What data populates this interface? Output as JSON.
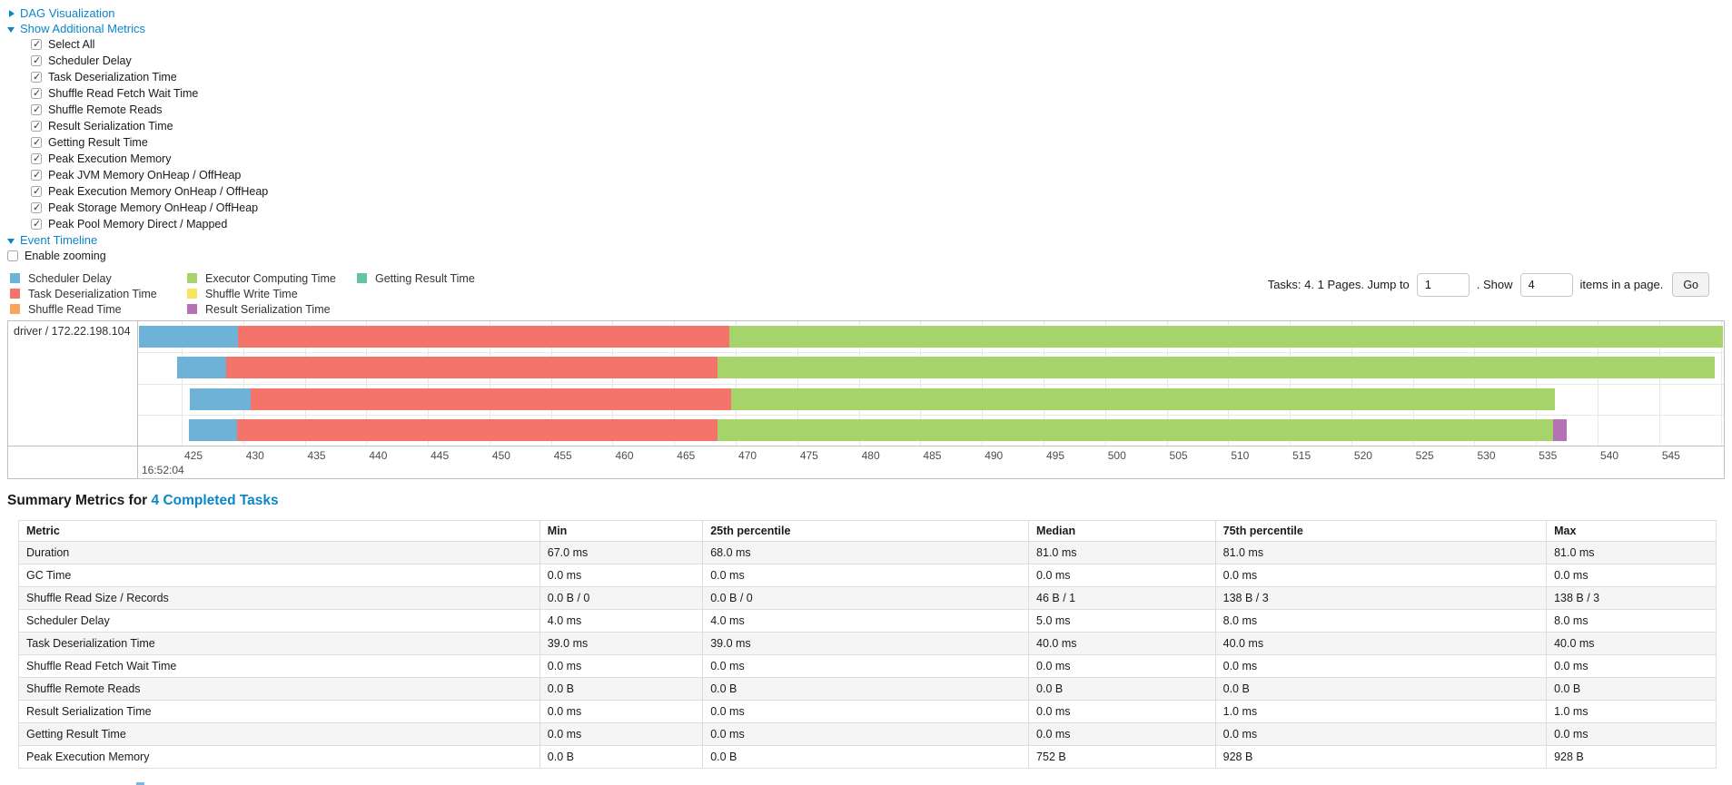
{
  "toggles": {
    "dag": "DAG Visualization",
    "metrics": "Show Additional Metrics",
    "timeline": "Event Timeline"
  },
  "metrics_panel": {
    "items": [
      "Select All",
      "Scheduler Delay",
      "Task Deserialization Time",
      "Shuffle Read Fetch Wait Time",
      "Shuffle Remote Reads",
      "Result Serialization Time",
      "Getting Result Time",
      "Peak Execution Memory",
      "Peak JVM Memory OnHeap / OffHeap",
      "Peak Execution Memory OnHeap / OffHeap",
      "Peak Storage Memory OnHeap / OffHeap",
      "Peak Pool Memory Direct / Mapped"
    ],
    "all_checked": true
  },
  "enable_zooming_label": "Enable zooming",
  "pagination": {
    "prefix": "Tasks: 4. 1 Pages. Jump to",
    "jump_value": "1",
    "mid": ". Show",
    "show_value": "4",
    "suffix": "items in a page.",
    "go_label": "Go"
  },
  "colors": {
    "link": "#0b86c8",
    "scheduler_delay": "#6FB2D8",
    "task_deserialization": "#F4736A",
    "shuffle_read": "#F9A65B",
    "executor_computing": "#A6D36A",
    "shuffle_write": "#F7E55F",
    "result_serialization": "#B671B2",
    "getting_result": "#65C2A3"
  },
  "chart_data": {
    "type": "timeline",
    "title": "Event Timeline",
    "group_label": "driver / 172.22.198.104",
    "axis": {
      "window_min": 421.46,
      "window_max": 550.25,
      "tick_start": 425,
      "tick_end": 550,
      "tick_step": 5,
      "unit": "milliseconds",
      "major_label": "16:52:04"
    },
    "legend_columns": [
      [
        {
          "label": "Scheduler Delay",
          "color": "scheduler_delay"
        },
        {
          "label": "Task Deserialization Time",
          "color": "task_deserialization"
        },
        {
          "label": "Shuffle Read Time",
          "color": "shuffle_read"
        }
      ],
      [
        {
          "label": "Executor Computing Time",
          "color": "executor_computing"
        },
        {
          "label": "Shuffle Write Time",
          "color": "shuffle_write"
        },
        {
          "label": "Result Serialization Time",
          "color": "result_serialization"
        }
      ],
      [
        {
          "label": "Getting Result Time",
          "color": "getting_result"
        }
      ]
    ],
    "tasks": [
      {
        "segments": [
          {
            "type": "scheduler_delay",
            "start": 421.5,
            "end": 429.6
          },
          {
            "type": "task_deserialization",
            "start": 429.6,
            "end": 469.5
          },
          {
            "type": "executor_computing",
            "start": 469.5,
            "end": 550.2
          }
        ]
      },
      {
        "segments": [
          {
            "type": "scheduler_delay",
            "start": 424.6,
            "end": 428.6
          },
          {
            "type": "task_deserialization",
            "start": 428.6,
            "end": 468.5
          },
          {
            "type": "executor_computing",
            "start": 468.5,
            "end": 549.5
          }
        ]
      },
      {
        "segments": [
          {
            "type": "scheduler_delay",
            "start": 425.7,
            "end": 430.6
          },
          {
            "type": "task_deserialization",
            "start": 430.6,
            "end": 469.6
          },
          {
            "type": "executor_computing",
            "start": 469.6,
            "end": 536.5
          }
        ]
      },
      {
        "segments": [
          {
            "type": "scheduler_delay",
            "start": 425.6,
            "end": 429.5
          },
          {
            "type": "task_deserialization",
            "start": 429.5,
            "end": 468.5
          },
          {
            "type": "executor_computing",
            "start": 468.5,
            "end": 536.4
          },
          {
            "type": "result_serialization",
            "start": 536.4,
            "end": 537.5
          }
        ]
      }
    ]
  },
  "summary": {
    "title_prefix": "Summary Metrics for",
    "title_link": "4 Completed Tasks",
    "columns": [
      "Metric",
      "Min",
      "25th percentile",
      "Median",
      "75th percentile",
      "Max"
    ],
    "col_widths": [
      "30.7%",
      "9.6%",
      "19.2%",
      "11.0%",
      "19.5%",
      "10.0%"
    ],
    "rows": [
      {
        "metric": "Duration",
        "values": [
          "67.0 ms",
          "68.0 ms",
          "81.0 ms",
          "81.0 ms",
          "81.0 ms"
        ]
      },
      {
        "metric": "GC Time",
        "values": [
          "0.0 ms",
          "0.0 ms",
          "0.0 ms",
          "0.0 ms",
          "0.0 ms"
        ]
      },
      {
        "metric": "Shuffle Read Size / Records",
        "values": [
          "0.0 B / 0",
          "0.0 B / 0",
          "46 B / 1",
          "138 B / 3",
          "138 B / 3"
        ]
      },
      {
        "metric": "Scheduler Delay",
        "values": [
          "4.0 ms",
          "4.0 ms",
          "5.0 ms",
          "8.0 ms",
          "8.0 ms"
        ]
      },
      {
        "metric": "Task Deserialization Time",
        "values": [
          "39.0 ms",
          "39.0 ms",
          "40.0 ms",
          "40.0 ms",
          "40.0 ms"
        ]
      },
      {
        "metric": "Shuffle Read Fetch Wait Time",
        "values": [
          "0.0 ms",
          "0.0 ms",
          "0.0 ms",
          "0.0 ms",
          "0.0 ms"
        ]
      },
      {
        "metric": "Shuffle Remote Reads",
        "values": [
          "0.0 B",
          "0.0 B",
          "0.0 B",
          "0.0 B",
          "0.0 B"
        ]
      },
      {
        "metric": "Result Serialization Time",
        "values": [
          "0.0 ms",
          "0.0 ms",
          "0.0 ms",
          "1.0 ms",
          "1.0 ms"
        ]
      },
      {
        "metric": "Getting Result Time",
        "values": [
          "0.0 ms",
          "0.0 ms",
          "0.0 ms",
          "0.0 ms",
          "0.0 ms"
        ]
      },
      {
        "metric": "Peak Execution Memory",
        "values": [
          "0.0 B",
          "0.0 B",
          "752 B",
          "928 B",
          "928 B"
        ]
      }
    ]
  }
}
